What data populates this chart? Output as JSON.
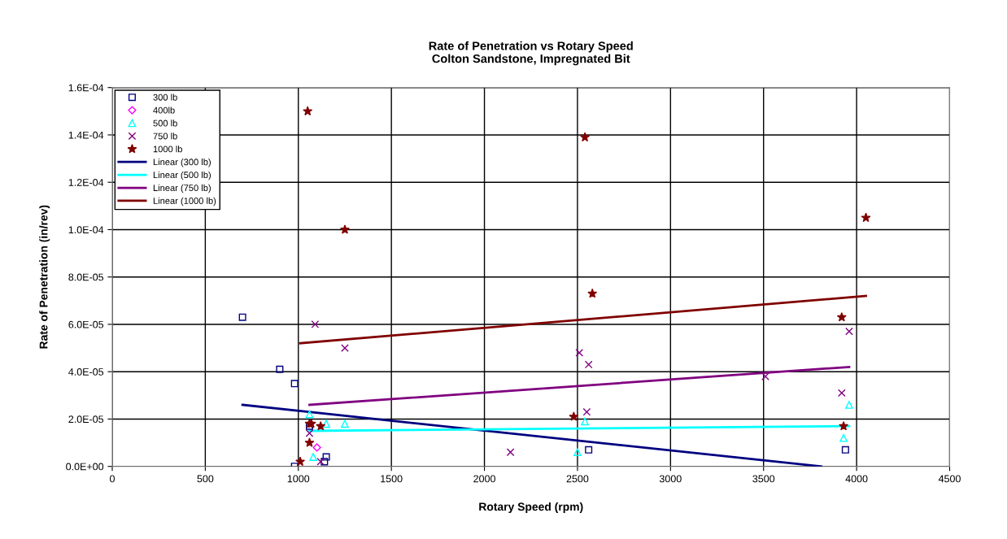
{
  "chart_data": {
    "type": "scatter",
    "title": "Rate of Penetration vs Rotary Speed\nColton Sandstone, Impregnated Bit",
    "xlabel": "Rotary Speed (rpm)",
    "ylabel": "Rate of Penetration (in/rev)",
    "xlim": [
      0,
      4500
    ],
    "xticks": [
      0,
      500,
      1000,
      1500,
      2000,
      2500,
      3000,
      3500,
      4000,
      4500
    ],
    "ylim": [
      0,
      0.00016
    ],
    "yticks": [
      {
        "value": 0,
        "label": "0.0E+00"
      },
      {
        "value": 2e-05,
        "label": "2.0E-05"
      },
      {
        "value": 4e-05,
        "label": "4.0E-05"
      },
      {
        "value": 6e-05,
        "label": "6.0E-05"
      },
      {
        "value": 8e-05,
        "label": "8.0E-05"
      },
      {
        "value": 0.0001,
        "label": "1.0E-04"
      },
      {
        "value": 0.00012,
        "label": "1.2E-04"
      },
      {
        "value": 0.00014,
        "label": "1.4E-04"
      },
      {
        "value": 0.00016,
        "label": "1.6E-04"
      }
    ],
    "grid": true,
    "legend": "top left",
    "series": [
      {
        "name": "300 lb",
        "marker": "square",
        "color": "#000080",
        "x": [
          700,
          900,
          980,
          980,
          1060,
          1150,
          1140,
          2560,
          3940
        ],
        "values": [
          6.3e-05,
          4.1e-05,
          3.5e-05,
          0,
          1.7e-05,
          4e-06,
          2e-06,
          7e-06,
          7e-06
        ]
      },
      {
        "name": "400lb",
        "marker": "diamond",
        "color": "#ff00ff",
        "x": [
          1100
        ],
        "values": [
          8e-06
        ]
      },
      {
        "name": "500 lb",
        "marker": "triangle",
        "color": "#00ffff",
        "x": [
          1060,
          1150,
          1250,
          1080,
          2500,
          2540,
          3960,
          3930
        ],
        "values": [
          2.2e-05,
          1.8e-05,
          1.8e-05,
          4e-06,
          6e-06,
          1.9e-05,
          2.6e-05,
          1.2e-05
        ]
      },
      {
        "name": "750 lb",
        "marker": "cross",
        "color": "#800080",
        "x": [
          1250,
          1090,
          1060,
          1120,
          2510,
          2560,
          2550,
          2140,
          3960,
          3510,
          3920
        ],
        "values": [
          5e-05,
          6e-05,
          1.4e-05,
          2e-06,
          4.8e-05,
          4.3e-05,
          2.3e-05,
          6e-06,
          5.7e-05,
          3.8e-05,
          3.1e-05
        ]
      },
      {
        "name": "1000 lb",
        "marker": "star",
        "color": "#800000",
        "x": [
          1050,
          2540,
          1250,
          4050,
          2580,
          3920,
          2480,
          3930,
          1060,
          1070,
          1120,
          1060,
          1010
        ],
        "values": [
          0.00015,
          0.000139,
          0.0001,
          0.000105,
          7.3e-05,
          6.3e-05,
          2.1e-05,
          1.7e-05,
          1.8e-05,
          1.8e-05,
          1.7e-05,
          1e-05,
          2e-06
        ]
      },
      {
        "name": "Linear (300 lb)",
        "type": "line",
        "color": "#000080",
        "x": [
          700,
          3810
        ],
        "values": [
          2.6e-05,
          0
        ]
      },
      {
        "name": "Linear (500 lb)",
        "type": "line",
        "color": "#00ffff",
        "x": [
          1060,
          3960
        ],
        "values": [
          1.5e-05,
          1.7e-05
        ]
      },
      {
        "name": "Linear (750 lb)",
        "type": "line",
        "color": "#800080",
        "x": [
          1060,
          3960
        ],
        "values": [
          2.6e-05,
          4.2e-05
        ]
      },
      {
        "name": "Linear (1000 lb)",
        "type": "line",
        "color": "#800000",
        "x": [
          1010,
          4050
        ],
        "values": [
          5.2e-05,
          7.2e-05
        ]
      }
    ]
  }
}
